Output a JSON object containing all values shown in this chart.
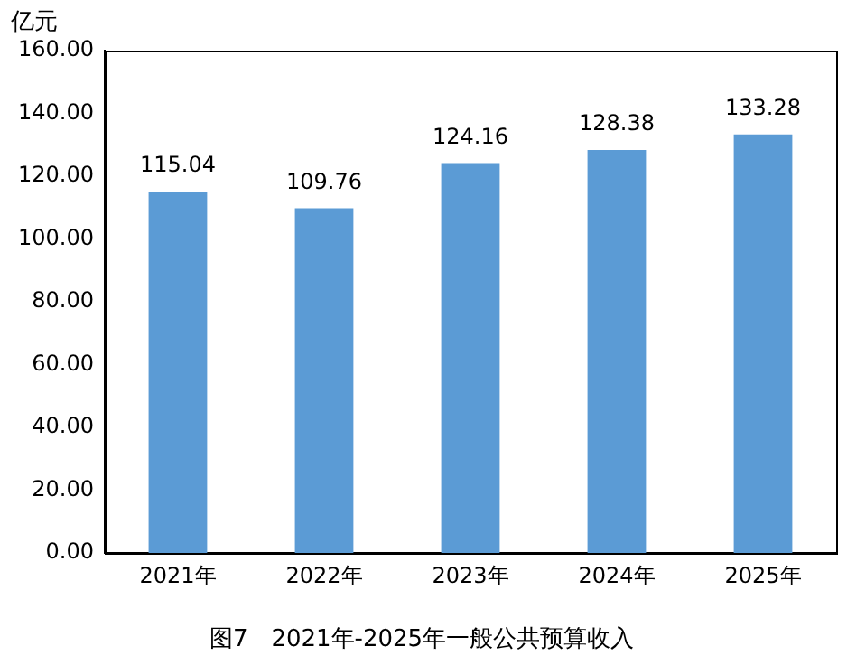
{
  "chart_data": {
    "type": "bar",
    "title": "图7　2021年-2025年一般公共预算收入",
    "ylabel": "亿元",
    "categories": [
      "2021年",
      "2022年",
      "2023年",
      "2024年",
      "2025年"
    ],
    "values": [
      115.04,
      109.76,
      124.16,
      128.38,
      133.28
    ],
    "color": "#5b9bd5",
    "ylim": [
      0,
      160
    ],
    "yticks": [
      {
        "value": 0,
        "label": "0.00"
      },
      {
        "value": 20,
        "label": "20.00"
      },
      {
        "value": 40,
        "label": "40.00"
      },
      {
        "value": 60,
        "label": "60.00"
      },
      {
        "value": 80,
        "label": "80.00"
      },
      {
        "value": 100,
        "label": "100.00"
      },
      {
        "value": 120,
        "label": "120.00"
      },
      {
        "value": 140,
        "label": "140.00"
      },
      {
        "value": 160,
        "label": "160.00"
      }
    ],
    "data_labels": true,
    "grid": false,
    "legend": false
  }
}
